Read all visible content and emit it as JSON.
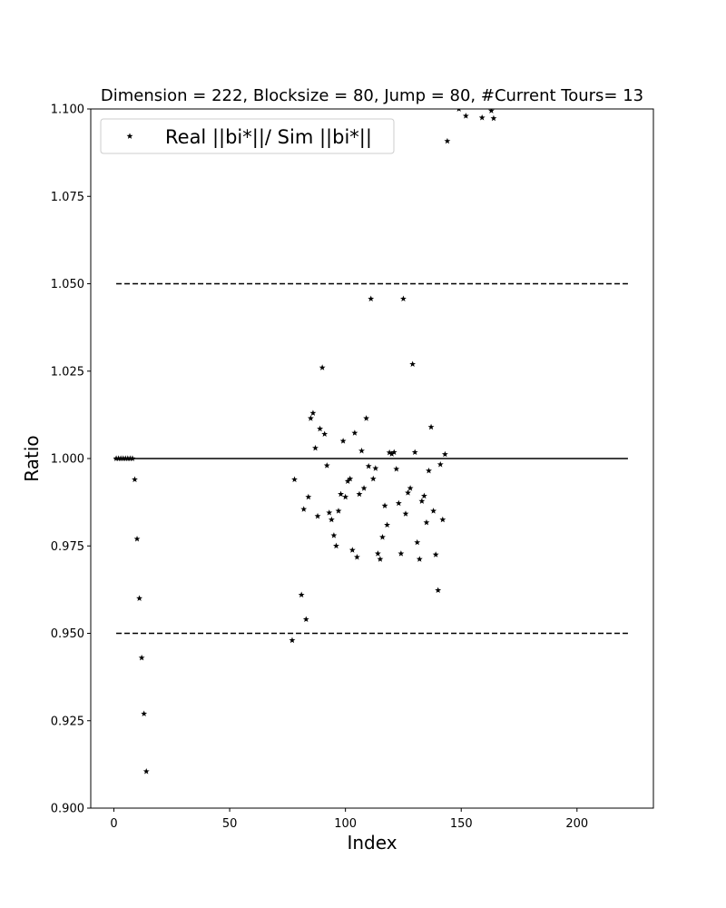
{
  "chart_data": {
    "type": "scatter",
    "title": "Dimension = 222, Blocksize = 80, Jump = 80, #Current Tours= 13",
    "xlabel": "Index",
    "ylabel": "Ratio",
    "xlim": [
      -10,
      233
    ],
    "ylim": [
      0.9,
      1.1
    ],
    "xticks": [
      0,
      50,
      100,
      150,
      200
    ],
    "xtick_labels": [
      "0",
      "50",
      "100",
      "150",
      "200"
    ],
    "yticks": [
      0.9,
      0.925,
      0.95,
      0.975,
      1.0,
      1.025,
      1.05,
      1.075,
      1.1
    ],
    "ytick_labels": [
      "0.900",
      "0.925",
      "0.950",
      "0.975",
      "1.000",
      "1.025",
      "1.050",
      "1.075",
      "1.100"
    ],
    "grid": false,
    "legend": {
      "position": "top-left",
      "entries": [
        "Real ||bi*||/ Sim ||bi*||"
      ]
    },
    "marker_color": "#000000",
    "reference_lines": [
      {
        "y": 1.0,
        "style": "solid",
        "x_range": [
          0,
          222
        ]
      },
      {
        "y": 1.05,
        "style": "dashed",
        "x_range": [
          1,
          222
        ]
      },
      {
        "y": 0.95,
        "style": "dashed",
        "x_range": [
          1,
          222
        ]
      }
    ],
    "series": [
      {
        "name": "Real ||bi*||/ Sim ||bi*||",
        "points": [
          [
            1,
            1.0
          ],
          [
            2,
            1.0
          ],
          [
            3,
            1.0
          ],
          [
            4,
            1.0
          ],
          [
            5,
            1.0
          ],
          [
            6,
            1.0
          ],
          [
            7,
            1.0
          ],
          [
            8,
            1.0
          ],
          [
            9,
            0.994
          ],
          [
            10,
            0.977
          ],
          [
            11,
            0.96
          ],
          [
            12,
            0.943
          ],
          [
            13,
            0.927
          ],
          [
            14,
            0.9105
          ],
          [
            77,
            0.948
          ],
          [
            78,
            0.994
          ],
          [
            81,
            0.961
          ],
          [
            82,
            0.9855
          ],
          [
            83,
            0.954
          ],
          [
            84,
            0.989
          ],
          [
            85,
            1.0115
          ],
          [
            86,
            1.013
          ],
          [
            87,
            1.003
          ],
          [
            88,
            0.9835
          ],
          [
            89,
            1.0085
          ],
          [
            90,
            1.026
          ],
          [
            91,
            1.007
          ],
          [
            92,
            0.998
          ],
          [
            93,
            0.9845
          ],
          [
            94,
            0.9825
          ],
          [
            95,
            0.978
          ],
          [
            96,
            0.975
          ],
          [
            97,
            0.985
          ],
          [
            98,
            0.9898
          ],
          [
            99,
            1.005
          ],
          [
            100,
            0.989
          ],
          [
            101,
            0.9935
          ],
          [
            102,
            0.9942
          ],
          [
            103,
            0.9738
          ],
          [
            104,
            1.0073
          ],
          [
            105,
            0.9718
          ],
          [
            106,
            0.9898
          ],
          [
            107,
            1.0022
          ],
          [
            108,
            0.9915
          ],
          [
            109,
            1.0115
          ],
          [
            110,
            0.9978
          ],
          [
            111,
            1.0457
          ],
          [
            112,
            0.9942
          ],
          [
            113,
            0.9972
          ],
          [
            114,
            0.9728
          ],
          [
            115,
            0.9712
          ],
          [
            116,
            0.9775
          ],
          [
            117,
            0.9865
          ],
          [
            118,
            0.981
          ],
          [
            119,
            1.0017
          ],
          [
            120,
            1.0013
          ],
          [
            121,
            1.0018
          ],
          [
            122,
            0.997
          ],
          [
            123,
            0.9872
          ],
          [
            124,
            0.9728
          ],
          [
            125,
            1.0457
          ],
          [
            126,
            0.9842
          ],
          [
            127,
            0.9902
          ],
          [
            128,
            0.9915
          ],
          [
            129,
            1.027
          ],
          [
            130,
            1.0018
          ],
          [
            131,
            0.976
          ],
          [
            132,
            0.9712
          ],
          [
            133,
            0.9878
          ],
          [
            134,
            0.9893
          ],
          [
            135,
            0.9817
          ],
          [
            136,
            0.9965
          ],
          [
            137,
            1.009
          ],
          [
            138,
            0.985
          ],
          [
            139,
            0.9725
          ],
          [
            140,
            0.9623
          ],
          [
            141,
            0.9983
          ],
          [
            142,
            0.9825
          ],
          [
            143,
            1.0012
          ],
          [
            144,
            1.0908
          ],
          [
            149,
            1.1
          ],
          [
            152,
            1.098
          ],
          [
            159,
            1.0975
          ],
          [
            163,
            1.0995
          ],
          [
            164,
            1.0973
          ]
        ]
      }
    ]
  }
}
